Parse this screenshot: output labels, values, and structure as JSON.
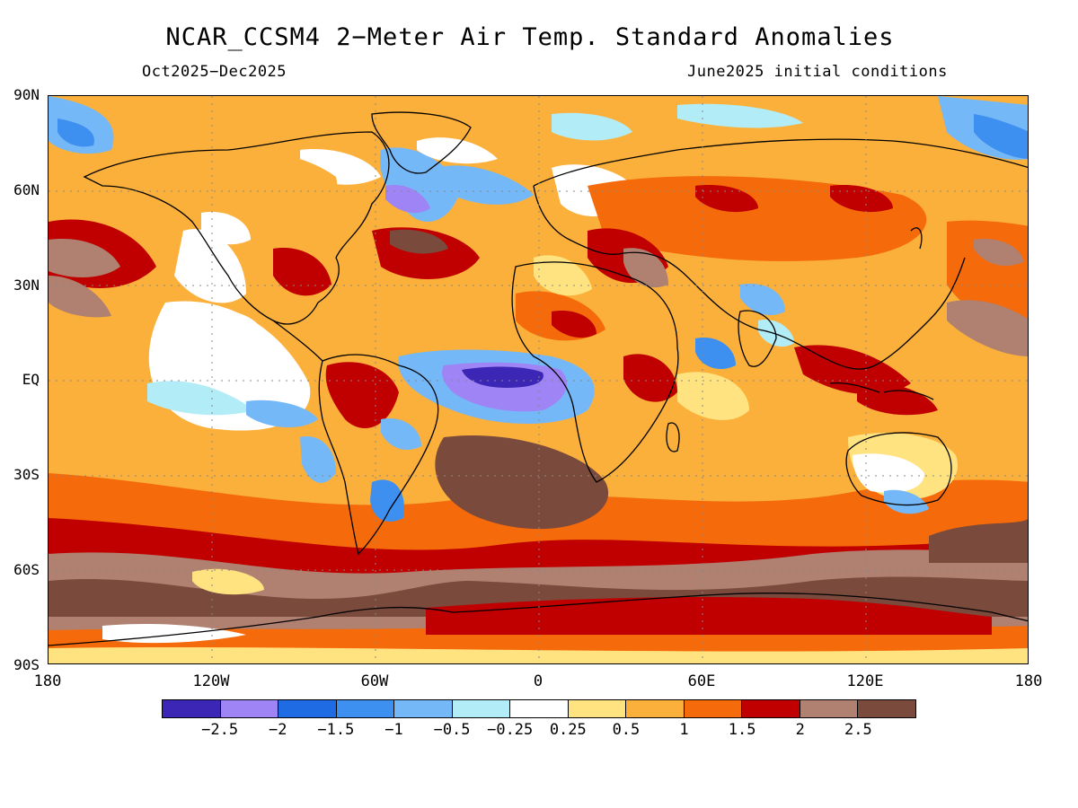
{
  "title": "NCAR_CCSM4 2−Meter Air Temp. Standard Anomalies",
  "period": "Oct2025−Dec2025",
  "init": "June2025 initial conditions",
  "lat_labels": [
    "90N",
    "60N",
    "30N",
    "EQ",
    "30S",
    "60S",
    "90S"
  ],
  "lon_labels": [
    "180",
    "120W",
    "60W",
    "0",
    "60E",
    "120E",
    "180"
  ],
  "colorbar": {
    "colors": [
      "#3b26b5",
      "#9e84f5",
      "#1f6be3",
      "#3d8ff0",
      "#75b8f7",
      "#b2ecf7",
      "#ffffff",
      "#ffe380",
      "#fbb03b",
      "#f56a0a",
      "#c00000",
      "#b08070",
      "#7a4a3c"
    ],
    "labels": [
      "−2.5",
      "−2",
      "−1.5",
      "−1",
      "−0.5",
      "−0.25",
      "0.25",
      "0.5",
      "1",
      "1.5",
      "2",
      "2.5"
    ]
  }
}
